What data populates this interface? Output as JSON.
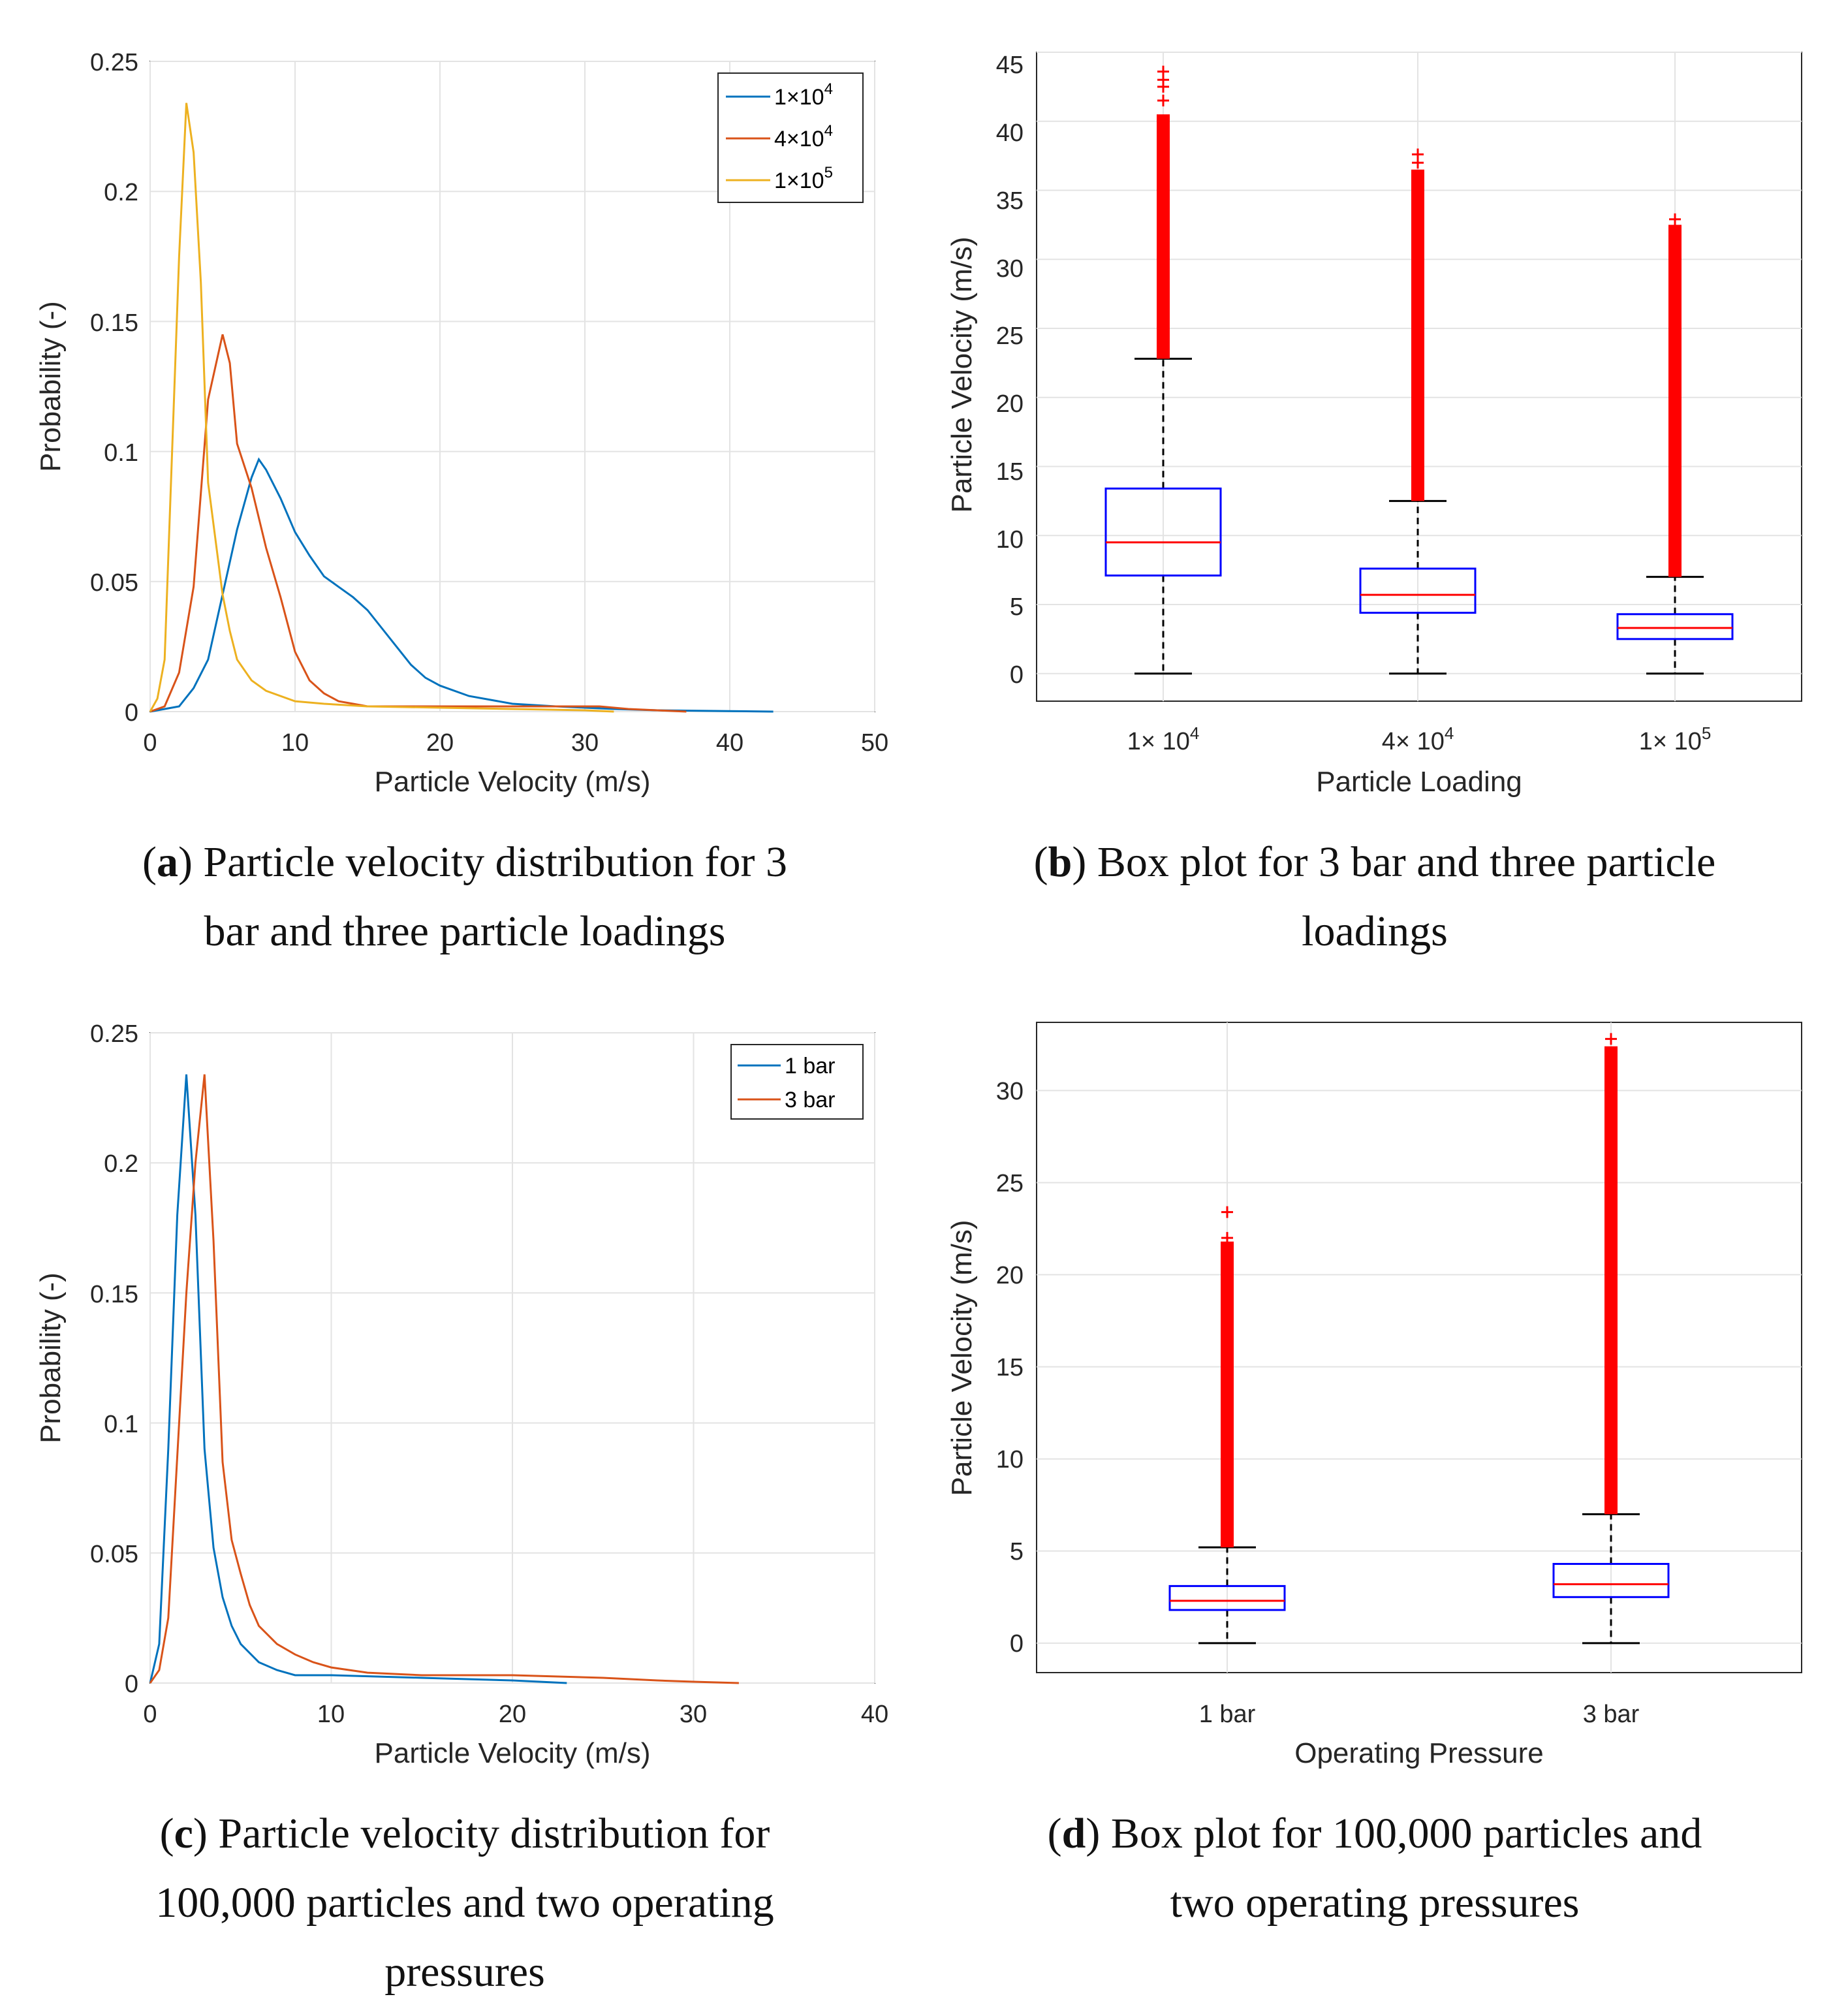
{
  "chart_data": [
    {
      "id": "a",
      "type": "line",
      "xlabel": "Particle Velocity (m/s)",
      "ylabel": "Probability (-)",
      "xlim": [
        0,
        50
      ],
      "ylim": [
        0,
        0.25
      ],
      "xticks": [
        "0",
        "10",
        "20",
        "30",
        "40",
        "50"
      ],
      "yticks": [
        "0",
        "0.05",
        "0.1",
        "0.15",
        "0.2",
        "0.25"
      ],
      "grid": true,
      "legend_position": "top-right",
      "caption": {
        "label": "a",
        "line1": ") Particle velocity distribution for 3",
        "line2": "bar and three particle loadings"
      },
      "series": [
        {
          "name": "1×10",
          "sup": "4",
          "color": "#0072BD",
          "x": [
            0,
            1,
            2,
            3,
            4,
            5,
            6,
            7,
            7.5,
            8,
            9,
            10,
            11,
            12,
            13,
            14,
            15,
            16,
            17,
            18,
            19,
            20,
            22,
            25,
            28,
            30,
            32,
            35,
            40,
            43
          ],
          "y": [
            0,
            0.001,
            0.002,
            0.009,
            0.02,
            0.045,
            0.07,
            0.09,
            0.097,
            0.093,
            0.082,
            0.069,
            0.06,
            0.052,
            0.048,
            0.044,
            0.039,
            0.032,
            0.025,
            0.018,
            0.013,
            0.01,
            0.006,
            0.003,
            0.002,
            0.0015,
            0.001,
            0.0005,
            0.0002,
            0
          ]
        },
        {
          "name": "4×10",
          "sup": "4",
          "color": "#D95319",
          "x": [
            0,
            1,
            2,
            3,
            4,
            5,
            5.5,
            6,
            7,
            8,
            9,
            10,
            11,
            12,
            13,
            14,
            15,
            17,
            20,
            25,
            28,
            30,
            31,
            33,
            35,
            37
          ],
          "y": [
            0,
            0.002,
            0.015,
            0.048,
            0.12,
            0.145,
            0.134,
            0.103,
            0.086,
            0.063,
            0.044,
            0.023,
            0.012,
            0.007,
            0.004,
            0.003,
            0.002,
            0.002,
            0.002,
            0.002,
            0.002,
            0.002,
            0.002,
            0.001,
            0.0005,
            0
          ]
        },
        {
          "name": "1×10",
          "sup": "5",
          "color": "#EDB120",
          "x": [
            0,
            0.5,
            1,
            2,
            2.5,
            3,
            3.5,
            4,
            5,
            5.5,
            6,
            7,
            8,
            10,
            12,
            15,
            20,
            25,
            30,
            32
          ],
          "y": [
            0,
            0.005,
            0.02,
            0.175,
            0.234,
            0.215,
            0.165,
            0.088,
            0.045,
            0.031,
            0.02,
            0.012,
            0.008,
            0.004,
            0.003,
            0.002,
            0.0015,
            0.001,
            0.0005,
            0
          ]
        }
      ]
    },
    {
      "id": "b",
      "type": "box",
      "xlabel": "Particle Loading",
      "ylabel": "Particle Velocity (m/s)",
      "ylim": [
        -2,
        45
      ],
      "yticks": [
        "0",
        "5",
        "10",
        "15",
        "20",
        "25",
        "30",
        "35",
        "40",
        "45"
      ],
      "grid": true,
      "caption": {
        "label": "b",
        "line1": ") Box plot for 3 bar and three particle",
        "line2": "loadings"
      },
      "groups": [
        {
          "label": "1× 10",
          "sup": "4",
          "whisker_low": 0,
          "q1": 7.1,
          "median": 9.5,
          "q3": 13.4,
          "whisker_high": 22.8,
          "outlier_dense_max": 40.5,
          "outlier_marks": [
            41.5,
            42.5,
            43.0,
            43.6
          ]
        },
        {
          "label": "4× 10",
          "sup": "4",
          "whisker_low": 0,
          "q1": 4.4,
          "median": 5.7,
          "q3": 7.6,
          "whisker_high": 12.5,
          "outlier_dense_max": 36.5,
          "outlier_marks": [
            37.0,
            37.6
          ]
        },
        {
          "label": "1× 10",
          "sup": "5",
          "whisker_low": 0,
          "q1": 2.5,
          "median": 3.3,
          "q3": 4.3,
          "whisker_high": 7.0,
          "outlier_dense_max": 32.5,
          "outlier_marks": [
            32.9
          ]
        }
      ]
    },
    {
      "id": "c",
      "type": "line",
      "xlabel": "Particle Velocity (m/s)",
      "ylabel": "Probability (-)",
      "xlim": [
        0,
        40
      ],
      "ylim": [
        0,
        0.25
      ],
      "xticks": [
        "0",
        "10",
        "20",
        "30",
        "40"
      ],
      "yticks": [
        "0",
        "0.05",
        "0.1",
        "0.15",
        "0.2",
        "0.25"
      ],
      "grid": true,
      "legend_position": "top-right",
      "caption": {
        "label": "c",
        "line1": ") Particle velocity distribution for",
        "line2": "100,000 particles and two operating",
        "line3": "pressures"
      },
      "series": [
        {
          "name": "1 bar",
          "color": "#0072BD",
          "x": [
            0,
            0.5,
            1,
            1.5,
            2,
            2.5,
            3,
            3.5,
            4,
            4.5,
            5,
            6,
            7,
            8,
            10,
            15,
            20,
            23
          ],
          "y": [
            0,
            0.015,
            0.09,
            0.18,
            0.234,
            0.18,
            0.09,
            0.052,
            0.033,
            0.022,
            0.015,
            0.008,
            0.005,
            0.003,
            0.003,
            0.002,
            0.001,
            0
          ]
        },
        {
          "name": "3 bar",
          "color": "#D95319",
          "x": [
            0,
            0.5,
            1,
            2,
            2.5,
            3,
            3.5,
            4,
            4.5,
            5,
            5.5,
            6,
            7,
            8,
            9,
            10,
            12,
            15,
            20,
            25,
            28,
            30,
            32.5
          ],
          "y": [
            0,
            0.005,
            0.025,
            0.15,
            0.2,
            0.234,
            0.17,
            0.085,
            0.055,
            0.042,
            0.03,
            0.022,
            0.015,
            0.011,
            0.008,
            0.006,
            0.004,
            0.003,
            0.003,
            0.002,
            0.001,
            0.0005,
            0
          ]
        }
      ]
    },
    {
      "id": "d",
      "type": "box",
      "xlabel": "Operating Pressure",
      "ylabel": "Particle Velocity (m/s)",
      "ylim": [
        -1.6,
        33.7
      ],
      "yticks": [
        "0",
        "5",
        "10",
        "15",
        "20",
        "25",
        "30"
      ],
      "grid": true,
      "caption": {
        "label": "d",
        "line1": ") Box plot for 100,000 particles and",
        "line2": "two operating pressures"
      },
      "groups": [
        {
          "label": "1 bar",
          "whisker_low": 0,
          "q1": 1.8,
          "median": 2.3,
          "q3": 3.1,
          "whisker_high": 5.2,
          "outlier_dense_max": 21.8,
          "outlier_marks": [
            22.0,
            23.4
          ]
        },
        {
          "label": "3 bar",
          "whisker_low": 0,
          "q1": 2.5,
          "median": 3.2,
          "q3": 4.3,
          "whisker_high": 7.0,
          "outlier_dense_max": 32.4,
          "outlier_marks": [
            32.8
          ]
        }
      ]
    }
  ]
}
